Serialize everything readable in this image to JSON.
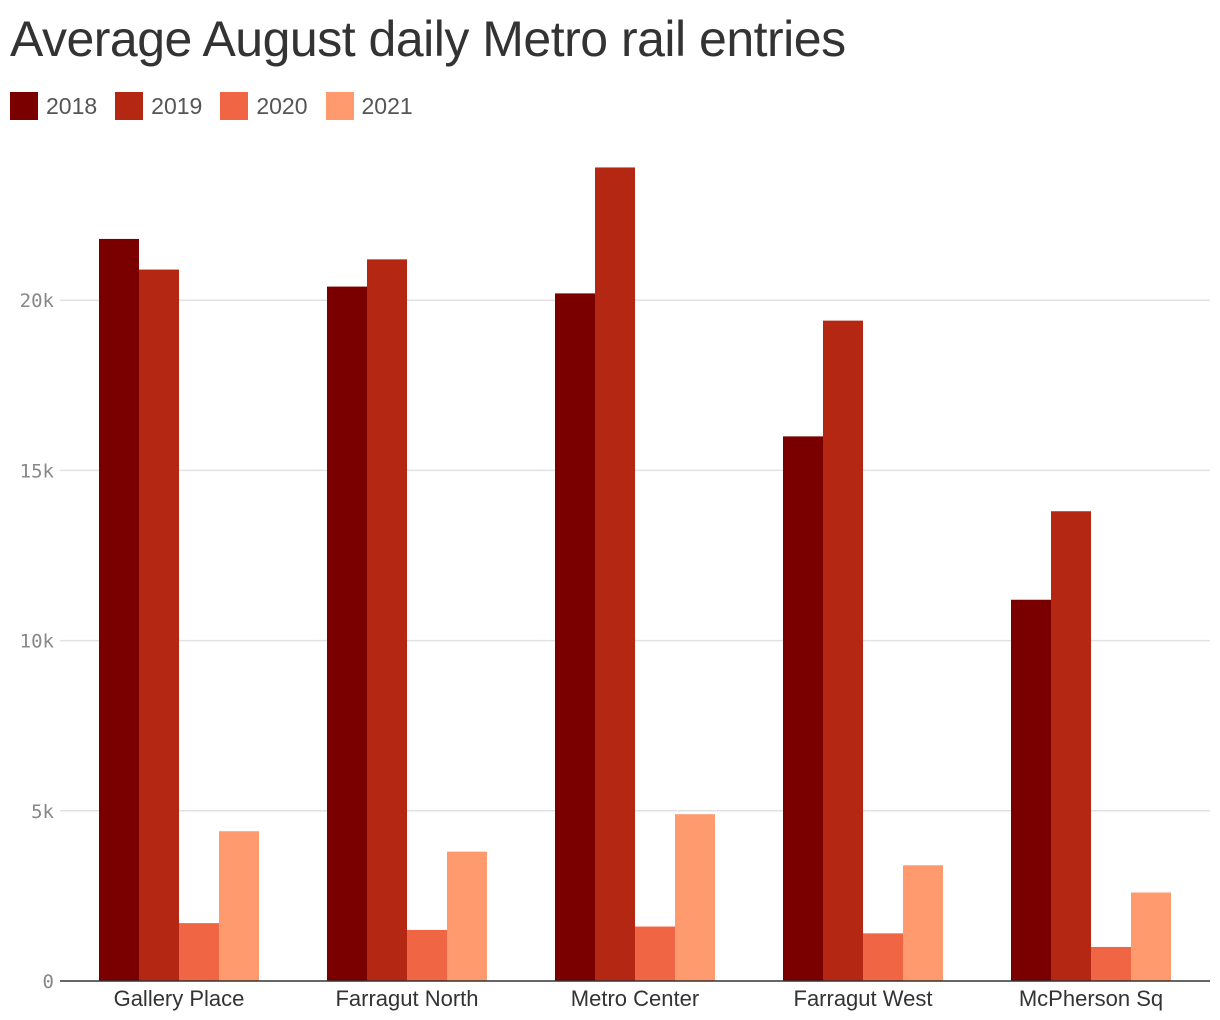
{
  "chart_data": {
    "type": "bar",
    "title": "Average August daily Metro rail entries",
    "categories": [
      "Gallery Place",
      "Farragut North",
      "Metro Center",
      "Farragut West",
      "McPherson Sq"
    ],
    "series": [
      {
        "name": "2018",
        "color": "#7a0000",
        "values": [
          21800,
          20400,
          20200,
          16000,
          11200
        ]
      },
      {
        "name": "2019",
        "color": "#b42713",
        "values": [
          20900,
          21200,
          23900,
          19400,
          13800
        ]
      },
      {
        "name": "2020",
        "color": "#f06543",
        "values": [
          1700,
          1500,
          1600,
          1400,
          1000
        ]
      },
      {
        "name": "2021",
        "color": "#ff9a6e",
        "values": [
          4400,
          3800,
          4900,
          3400,
          2600
        ]
      }
    ],
    "yticks": [
      0,
      5000,
      10000,
      15000,
      20000
    ],
    "ytick_labels": [
      "0",
      "5k",
      "10k",
      "15k",
      "20k"
    ],
    "ylim": [
      0,
      25000
    ],
    "xlabel": "",
    "ylabel": "",
    "grid": true,
    "legend_position": "top-left"
  }
}
